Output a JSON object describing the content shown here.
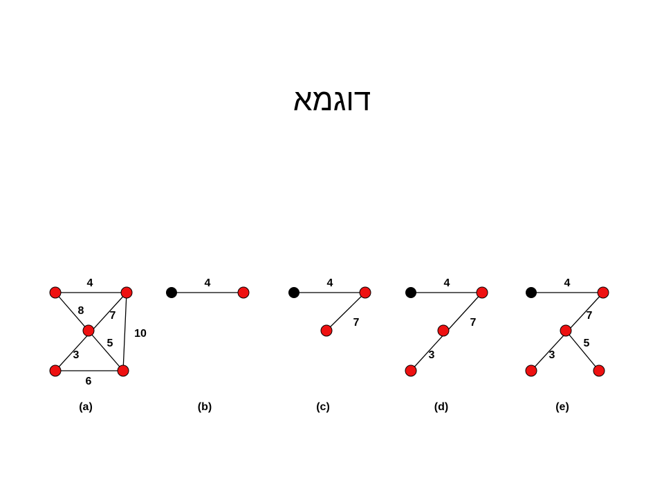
{
  "title": "דוגמא",
  "graphs": [
    {
      "label": "(a)",
      "weights": [
        4,
        8,
        7,
        5,
        3,
        10,
        6
      ]
    },
    {
      "label": "(b)",
      "weights": [
        4
      ]
    },
    {
      "label": "(c)",
      "weights": [
        4,
        7
      ]
    },
    {
      "label": "(d)",
      "weights": [
        4,
        7,
        3
      ]
    },
    {
      "label": "(e)",
      "weights": [
        4,
        7,
        5,
        3
      ]
    }
  ]
}
